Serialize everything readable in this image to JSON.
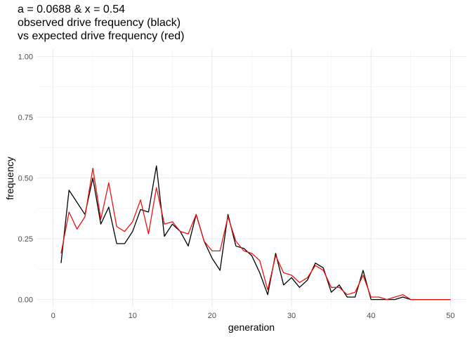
{
  "chart_data": {
    "type": "line",
    "title_lines": [
      "a = 0.0688 & x = 0.54",
      "observed drive frequency (black)",
      "vs expected drive frequency (red)"
    ],
    "xlabel": "generation",
    "ylabel": "frequency",
    "xlim": [
      -2,
      52
    ],
    "ylim": [
      -0.03,
      1.03
    ],
    "x_ticks": [
      0,
      10,
      20,
      30,
      40,
      50
    ],
    "y_ticks": [
      0.0,
      0.25,
      0.5,
      0.75,
      1.0
    ],
    "y_tick_labels": [
      "0.00",
      "0.25",
      "0.50",
      "0.75",
      "1.00"
    ],
    "grid": true,
    "x": [
      1,
      2,
      3,
      4,
      5,
      6,
      7,
      8,
      9,
      10,
      11,
      12,
      13,
      14,
      15,
      16,
      17,
      18,
      19,
      20,
      21,
      22,
      23,
      24,
      25,
      26,
      27,
      28,
      29,
      30,
      31,
      32,
      33,
      34,
      35,
      36,
      37,
      38,
      39,
      40,
      41,
      42,
      43,
      44,
      45,
      46,
      47,
      48,
      49,
      50
    ],
    "series": [
      {
        "color": "#000000",
        "values": [
          0.15,
          0.45,
          0.4,
          0.35,
          0.5,
          0.31,
          0.38,
          0.23,
          0.23,
          0.28,
          0.37,
          0.36,
          0.55,
          0.26,
          0.31,
          0.28,
          0.22,
          0.35,
          0.24,
          0.17,
          0.12,
          0.35,
          0.22,
          0.21,
          0.18,
          0.11,
          0.02,
          0.19,
          0.06,
          0.09,
          0.05,
          0.08,
          0.15,
          0.13,
          0.03,
          0.06,
          0.01,
          0.01,
          0.12,
          0.0,
          0.0,
          0.0,
          0.0,
          0.01,
          0.0,
          0.0,
          0.0,
          0.0,
          0.0,
          0.0
        ]
      },
      {
        "color": "#ee1111",
        "values": [
          0.19,
          0.36,
          0.29,
          0.34,
          0.54,
          0.33,
          0.48,
          0.3,
          0.28,
          0.32,
          0.41,
          0.27,
          0.46,
          0.31,
          0.32,
          0.28,
          0.27,
          0.35,
          0.24,
          0.2,
          0.2,
          0.34,
          0.24,
          0.2,
          0.19,
          0.16,
          0.04,
          0.18,
          0.11,
          0.1,
          0.07,
          0.09,
          0.14,
          0.12,
          0.05,
          0.05,
          0.02,
          0.03,
          0.1,
          0.01,
          0.01,
          0.0,
          0.01,
          0.02,
          0.0,
          0.0,
          0.0,
          0.0,
          0.0,
          0.0
        ]
      }
    ]
  }
}
